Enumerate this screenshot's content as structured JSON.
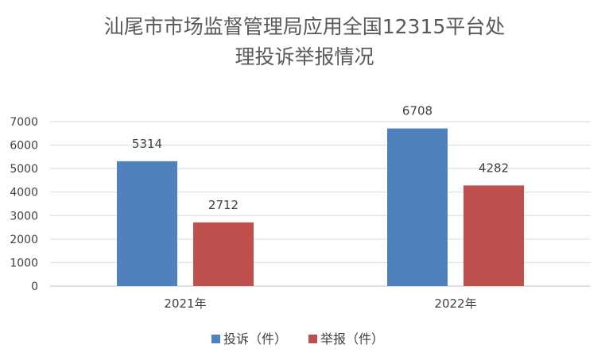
{
  "chart_data": {
    "type": "bar",
    "title_line1": "汕尾市市场监督管理局应用全国12315平台处",
    "title_line2": "理投诉举报情况",
    "categories": [
      "2021年",
      "2022年"
    ],
    "series": [
      {
        "name": "投诉（件）",
        "values": [
          5314,
          6708
        ],
        "color": "#4f81bd"
      },
      {
        "name": "举报（件）",
        "values": [
          2712,
          4282
        ],
        "color": "#c0504d"
      }
    ],
    "ylim": [
      0,
      7000
    ],
    "yticks": [
      0,
      1000,
      2000,
      3000,
      4000,
      5000,
      6000,
      7000
    ],
    "grid": true,
    "legend_position": "bottom"
  }
}
